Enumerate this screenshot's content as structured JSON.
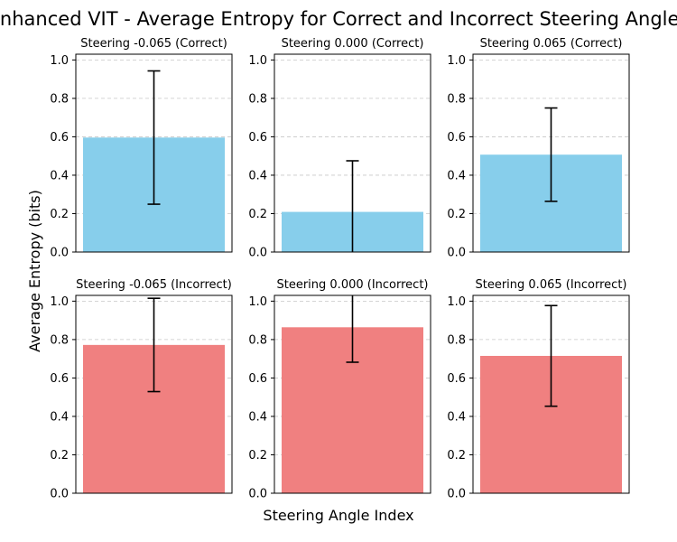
{
  "figure": {
    "suptitle": "Enhanced VIT - Average Entropy for Correct and Incorrect Steering Angles",
    "supylabel": "Average Entropy (bits)",
    "supxlabel": "Steering Angle Index"
  },
  "chart_data": [
    {
      "type": "bar",
      "title": "Steering -0.065 (Correct)",
      "values": [
        0.596
      ],
      "error": [
        0.347
      ],
      "ylim": [
        0,
        1.03
      ],
      "yticks": [
        "0.0",
        "0.2",
        "0.4",
        "0.6",
        "0.8",
        "1.0"
      ],
      "grid": "y-dashed",
      "color": "#87CEEB"
    },
    {
      "type": "bar",
      "title": "Steering 0.000 (Correct)",
      "values": [
        0.209
      ],
      "error": [
        0.266
      ],
      "ylim": [
        0,
        1.03
      ],
      "yticks": [
        "0.0",
        "0.2",
        "0.4",
        "0.6",
        "0.8",
        "1.0"
      ],
      "grid": "y-dashed",
      "color": "#87CEEB"
    },
    {
      "type": "bar",
      "title": "Steering 0.065 (Correct)",
      "values": [
        0.507
      ],
      "error": [
        0.243
      ],
      "ylim": [
        0,
        1.03
      ],
      "yticks": [
        "0.0",
        "0.2",
        "0.4",
        "0.6",
        "0.8",
        "1.0"
      ],
      "grid": "y-dashed",
      "color": "#87CEEB"
    },
    {
      "type": "bar",
      "title": "Steering -0.065 (Incorrect)",
      "values": [
        0.772
      ],
      "error": [
        0.243
      ],
      "ylim": [
        0,
        1.03
      ],
      "yticks": [
        "0.0",
        "0.2",
        "0.4",
        "0.6",
        "0.8",
        "1.0"
      ],
      "grid": "y-dashed",
      "color": "#F08080"
    },
    {
      "type": "bar",
      "title": "Steering 0.000 (Incorrect)",
      "values": [
        0.864
      ],
      "error": [
        0.182
      ],
      "ylim": [
        0,
        1.03
      ],
      "yticks": [
        "0.0",
        "0.2",
        "0.4",
        "0.6",
        "0.8",
        "1.0"
      ],
      "grid": "y-dashed",
      "color": "#F08080"
    },
    {
      "type": "bar",
      "title": "Steering 0.065 (Incorrect)",
      "values": [
        0.715
      ],
      "error": [
        0.262
      ],
      "ylim": [
        0,
        1.03
      ],
      "yticks": [
        "0.0",
        "0.2",
        "0.4",
        "0.6",
        "0.8",
        "1.0"
      ],
      "grid": "y-dashed",
      "color": "#F08080"
    }
  ]
}
